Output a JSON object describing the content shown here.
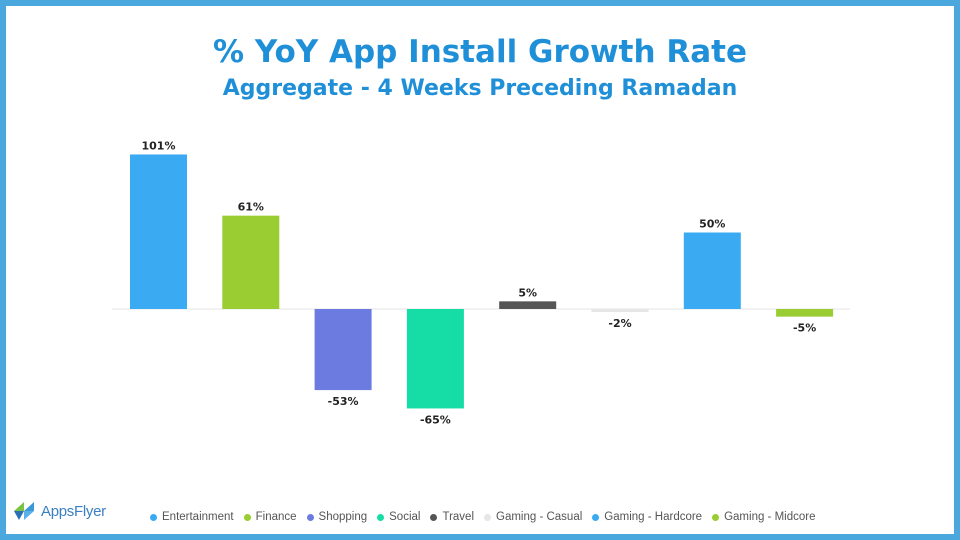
{
  "chart_data": {
    "type": "bar",
    "title": "% YoY App Install Growth Rate",
    "subtitle": "Aggregate - 4 Weeks Preceding Ramadan",
    "categories": [
      "Entertainment",
      "Finance",
      "Shopping",
      "Social",
      "Travel",
      "Gaming - Casual",
      "Gaming - Hardcore",
      "Gaming - Midcore"
    ],
    "values": [
      101,
      61,
      -53,
      -65,
      5,
      -2,
      50,
      -5
    ],
    "data_labels": [
      "101%",
      "61%",
      "-53%",
      "-65%",
      "5%",
      "-2%",
      "50%",
      "-5%"
    ],
    "colors": [
      "#3aabf2",
      "#9acd32",
      "#6b7be0",
      "#16dca6",
      "#555555",
      "#e6e6e6",
      "#3aabf2",
      "#9acd32"
    ],
    "ylim": [
      -80,
      115
    ],
    "grid": false,
    "legend": "bottom",
    "xlabel": "",
    "ylabel": ""
  },
  "logo": {
    "text": "AppsFlyer",
    "icon": "appsflyer-logo-icon"
  }
}
